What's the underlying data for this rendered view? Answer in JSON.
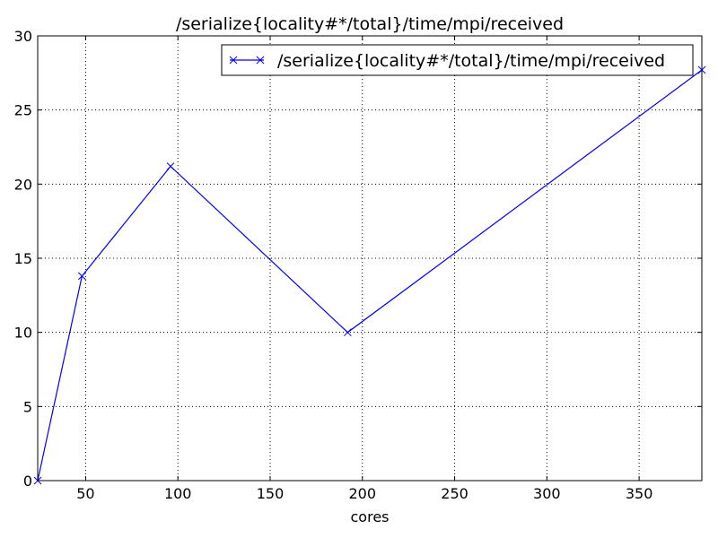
{
  "chart_data": {
    "type": "line",
    "title": "/serialize{locality#*/total}/time/mpi/received",
    "xlabel": "cores",
    "ylabel": "",
    "xlim": [
      24,
      384
    ],
    "ylim": [
      0,
      30
    ],
    "xticks": [
      50,
      100,
      150,
      200,
      250,
      300,
      350
    ],
    "yticks": [
      0,
      5,
      10,
      15,
      20,
      25,
      30
    ],
    "grid": true,
    "legend_position": "top-right",
    "series": [
      {
        "name": "/serialize{locality#*/total}/time/mpi/received",
        "color": "#0000ff",
        "marker": "x",
        "x": [
          24,
          48,
          96,
          192,
          384
        ],
        "y": [
          0.0,
          13.8,
          21.2,
          10.0,
          27.7
        ]
      }
    ]
  }
}
